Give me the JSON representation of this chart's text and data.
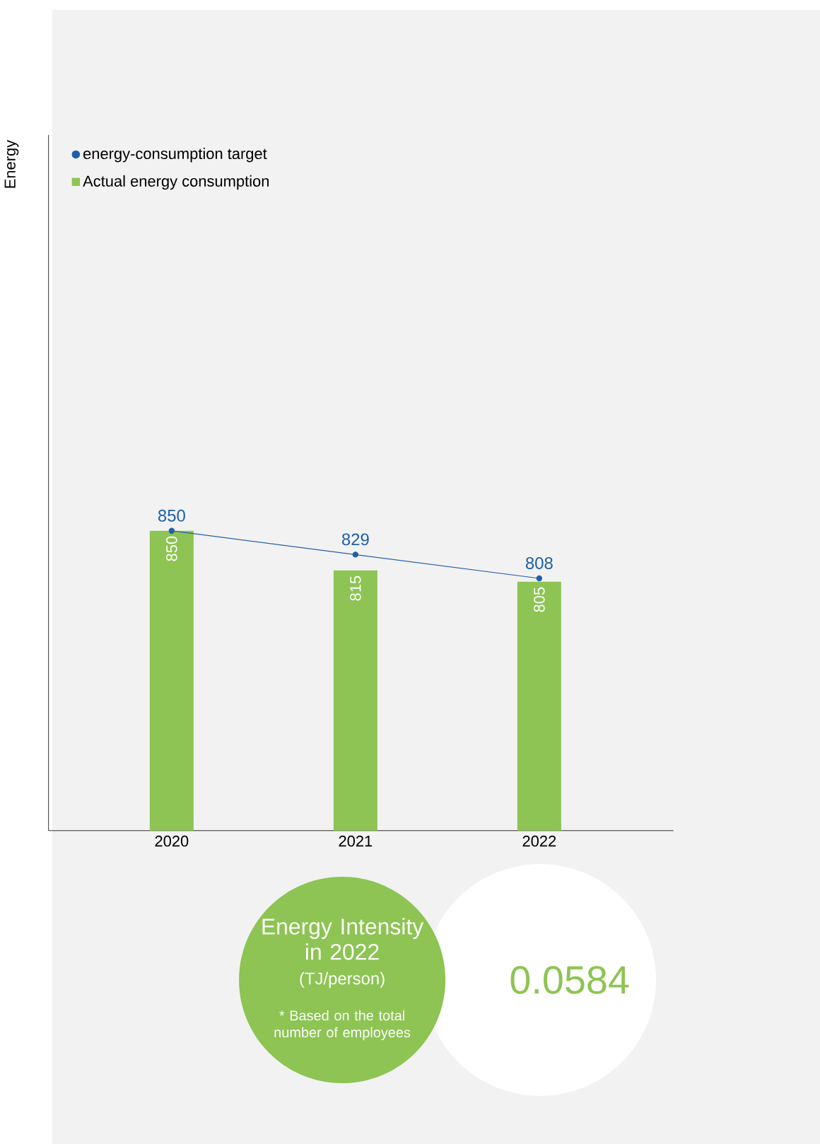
{
  "chart_data": {
    "type": "bar",
    "ylabel": "Energy",
    "categories": [
      "2020",
      "2021",
      "2022"
    ],
    "series": [
      {
        "name": "energy-consumption target",
        "type": "line",
        "color": "#1f5fa8",
        "values": [
          850,
          829,
          808
        ],
        "marker": "circle"
      },
      {
        "name": "Actual energy consumption",
        "color": "#8dc453",
        "values": [
          850,
          815,
          805
        ]
      }
    ],
    "ylim": [
      585,
      1200
    ],
    "data_labels": true,
    "legend": "top left",
    "tick_labels": "x",
    "annotations": [
      "Energy Intensity in 2022",
      "(TJ/person)",
      "* Based on the total number of employees",
      "0.0584"
    ]
  }
}
